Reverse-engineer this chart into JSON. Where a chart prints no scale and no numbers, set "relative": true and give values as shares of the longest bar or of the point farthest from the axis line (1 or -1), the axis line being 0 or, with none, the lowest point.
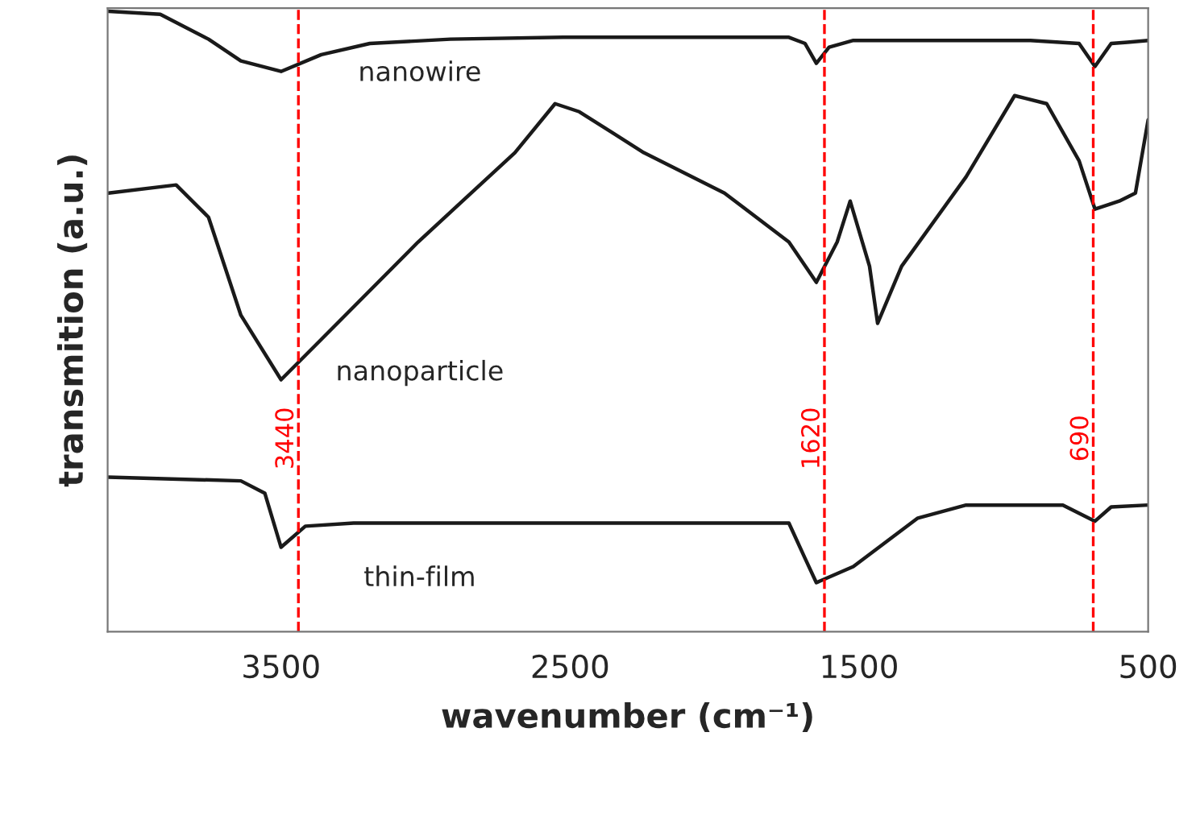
{
  "chart_data": {
    "type": "line",
    "relative": true,
    "xlabel": "wavenumber (cm⁻¹)",
    "ylabel": "transmition (a.u.)",
    "xlim": [
      4100,
      500
    ],
    "xticks": [
      3500,
      2500,
      1500,
      500
    ],
    "tick_labels": "x",
    "grid": false,
    "legend": false,
    "series": [
      {
        "name": "nanowire",
        "color": "#1a1a1a",
        "x": [
          4097,
          3918,
          3751,
          3639,
          3500,
          3361,
          3193,
          2914,
          2524,
          2245,
          1966,
          1743,
          1687,
          1648,
          1604,
          1520,
          1353,
          1130,
          907,
          739,
          684,
          628,
          572,
          500
        ],
        "values": [
          1.0,
          0.995,
          0.955,
          0.92,
          0.903,
          0.93,
          0.948,
          0.955,
          0.958,
          0.958,
          0.958,
          0.958,
          0.948,
          0.916,
          0.942,
          0.953,
          0.953,
          0.953,
          0.953,
          0.948,
          0.911,
          0.948,
          0.95,
          0.953
        ]
      },
      {
        "name": "nanoparticle",
        "color": "#1a1a1a",
        "x": [
          4097,
          3863,
          3751,
          3639,
          3500,
          3361,
          3026,
          2691,
          2552,
          2468,
          2245,
          1966,
          1743,
          1648,
          1576,
          1531,
          1464,
          1436,
          1353,
          1130,
          962,
          851,
          739,
          684,
          600,
          544,
          500
        ],
        "values": [
          0.707,
          0.72,
          0.668,
          0.51,
          0.406,
          0.471,
          0.628,
          0.772,
          0.851,
          0.838,
          0.772,
          0.707,
          0.628,
          0.563,
          0.628,
          0.694,
          0.589,
          0.497,
          0.589,
          0.733,
          0.864,
          0.851,
          0.759,
          0.681,
          0.694,
          0.707,
          0.825
        ]
      },
      {
        "name": "thin-film",
        "color": "#1a1a1a",
        "x": [
          4097,
          3639,
          3556,
          3500,
          3416,
          3249,
          2245,
          1743,
          1687,
          1648,
          1520,
          1297,
          1130,
          795,
          684,
          628,
          500
        ],
        "values": [
          0.249,
          0.243,
          0.223,
          0.136,
          0.17,
          0.175,
          0.175,
          0.175,
          0.118,
          0.079,
          0.105,
          0.183,
          0.204,
          0.204,
          0.178,
          0.201,
          0.204
        ]
      }
    ],
    "ref_lines": [
      {
        "axis": "x",
        "value": 3440,
        "label": "3440",
        "color": "#ff0000",
        "line_style": "dashed"
      },
      {
        "axis": "x",
        "value": 1620,
        "label": "1620",
        "color": "#ff0000",
        "line_style": "dashed"
      },
      {
        "axis": "x",
        "value": 690,
        "label": "690",
        "color": "#ff0000",
        "line_style": "dashed"
      }
    ]
  }
}
